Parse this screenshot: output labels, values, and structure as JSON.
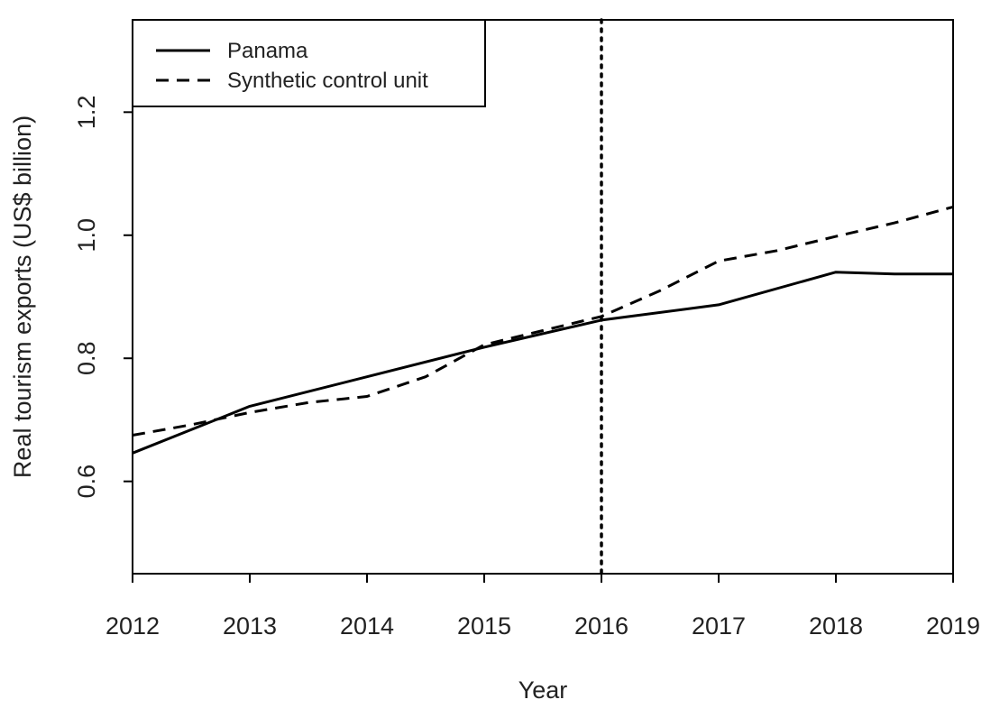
{
  "chart_data": {
    "type": "line",
    "title": "",
    "xlabel": "Year",
    "ylabel": "Real tourism exports (US$ billion)",
    "xlim": [
      2012,
      2019
    ],
    "ylim": [
      0.45,
      1.35
    ],
    "x_ticks": [
      2012,
      2013,
      2014,
      2015,
      2016,
      2017,
      2018,
      2019
    ],
    "y_ticks": [
      0.6,
      0.8,
      1.0,
      1.2
    ],
    "x_tick_labels": [
      "2012",
      "2013",
      "2014",
      "2015",
      "2016",
      "2017",
      "2018",
      "2019"
    ],
    "y_tick_labels": [
      "0.6",
      "0.8",
      "1.0",
      "1.2"
    ],
    "grid": false,
    "legend_position": "top-left",
    "series": [
      {
        "name": "Panama",
        "style": "solid",
        "color": "#000000",
        "points": [
          [
            2012,
            0.646
          ],
          [
            2013,
            0.722
          ],
          [
            2014,
            0.77
          ],
          [
            2015,
            0.818
          ],
          [
            2016,
            0.862
          ],
          [
            2017,
            0.887
          ],
          [
            2018,
            0.94
          ],
          [
            2018.5,
            0.937
          ],
          [
            2019,
            0.937
          ]
        ]
      },
      {
        "name": "Synthetic control unit",
        "style": "dashed",
        "color": "#000000",
        "points": [
          [
            2012,
            0.675
          ],
          [
            2012.5,
            0.692
          ],
          [
            2013,
            0.712
          ],
          [
            2013.5,
            0.728
          ],
          [
            2014,
            0.738
          ],
          [
            2014.5,
            0.77
          ],
          [
            2015,
            0.822
          ],
          [
            2015.5,
            0.845
          ],
          [
            2016,
            0.868
          ],
          [
            2016.5,
            0.91
          ],
          [
            2017,
            0.958
          ],
          [
            2017.5,
            0.975
          ],
          [
            2018,
            0.998
          ],
          [
            2018.5,
            1.02
          ],
          [
            2019,
            1.046
          ]
        ]
      }
    ],
    "reference_lines": [
      {
        "axis": "x",
        "value": 2016,
        "style": "dotted",
        "color": "#000000"
      }
    ]
  }
}
